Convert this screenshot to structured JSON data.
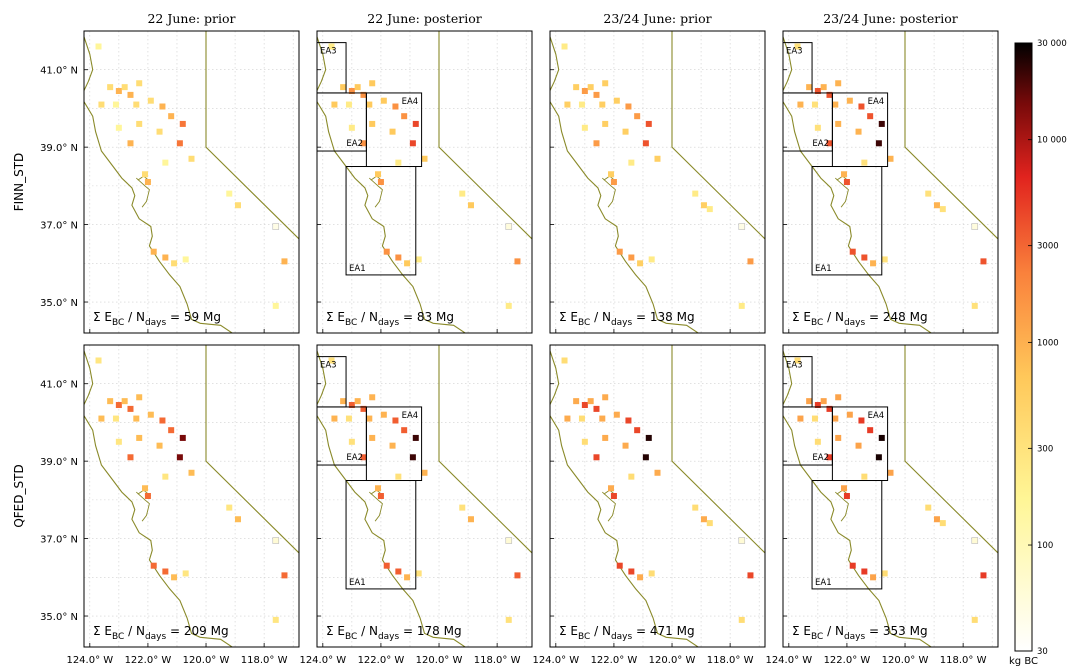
{
  "chart_data": {
    "type": "heatmap",
    "column_titles": [
      "22 June:  prior",
      "22 June:  posterior",
      "23/24 June:  prior",
      "23/24 June:  posterior"
    ],
    "row_labels": [
      "FINN_STD",
      "QFED_STD"
    ],
    "x_ticks": [
      "124.0° W",
      "122.0° W",
      "120.0° W",
      "118.0° W"
    ],
    "y_ticks": [
      "41.0° N",
      "39.0° N",
      "37.0° N",
      "35.0° N"
    ],
    "xlim": [
      -124.2,
      -116.8
    ],
    "ylim": [
      34.2,
      42.0
    ],
    "colorbar": {
      "ticks": [
        "30 000",
        "10 000",
        "3000",
        "1000",
        "300",
        "100",
        "30"
      ],
      "label": "kg BC",
      "min": 30,
      "max": 30000,
      "scale": "log"
    },
    "totals": [
      [
        "59 Mg",
        "83 Mg",
        "138 Mg",
        "248 Mg"
      ],
      [
        "209 Mg",
        "178 Mg",
        "471 Mg",
        "353 Mg"
      ]
    ],
    "total_label": {
      "sigma": "Σ E",
      "sub1": "BC",
      "mid": " / N",
      "sub2": "days",
      "eq": " = "
    },
    "regions": [
      {
        "name": "EA1",
        "lon": [
          -123.2,
          -120.8
        ],
        "lat": [
          35.7,
          38.5
        ]
      },
      {
        "name": "EA2",
        "lon": [
          -124.2,
          -122.5
        ],
        "lat": [
          38.9,
          40.4
        ]
      },
      {
        "name": "EA3",
        "lon": [
          -124.2,
          -123.2
        ],
        "lat": [
          40.4,
          41.7
        ]
      },
      {
        "name": "EA4",
        "lon": [
          -122.5,
          -120.6
        ],
        "lat": [
          38.5,
          40.4
        ]
      }
    ],
    "region_panels": [
      [
        1,
        3
      ],
      [
        1,
        3
      ]
    ],
    "sources": [
      [
        -123.7,
        41.6,
        1
      ],
      [
        -123.3,
        40.55,
        2
      ],
      [
        -123.0,
        40.45,
        3
      ],
      [
        -122.8,
        40.55,
        2
      ],
      [
        -122.6,
        40.35,
        3
      ],
      [
        -122.3,
        40.65,
        2
      ],
      [
        -123.6,
        40.1,
        2
      ],
      [
        -123.1,
        40.1,
        1
      ],
      [
        -122.4,
        40.1,
        2
      ],
      [
        -121.9,
        40.2,
        2
      ],
      [
        -121.5,
        40.05,
        3
      ],
      [
        -121.2,
        39.8,
        3
      ],
      [
        -120.8,
        39.6,
        4
      ],
      [
        -120.9,
        39.1,
        4
      ],
      [
        -121.6,
        39.4,
        2
      ],
      [
        -122.3,
        39.6,
        2
      ],
      [
        -123.0,
        39.5,
        1
      ],
      [
        -122.6,
        39.1,
        3
      ],
      [
        -121.4,
        38.6,
        1
      ],
      [
        -120.5,
        38.7,
        2
      ],
      [
        -122.1,
        38.3,
        2
      ],
      [
        -122.0,
        38.1,
        3
      ],
      [
        -119.2,
        37.8,
        1
      ],
      [
        -118.9,
        37.5,
        2
      ],
      [
        -118.7,
        37.4,
        1
      ],
      [
        -121.8,
        36.3,
        3
      ],
      [
        -121.4,
        36.15,
        3
      ],
      [
        -121.1,
        36.0,
        2
      ],
      [
        -117.6,
        36.95,
        0
      ],
      [
        -117.3,
        36.05,
        3
      ],
      [
        -117.6,
        34.9,
        1
      ],
      [
        -120.7,
        36.1,
        1
      ]
    ]
  }
}
